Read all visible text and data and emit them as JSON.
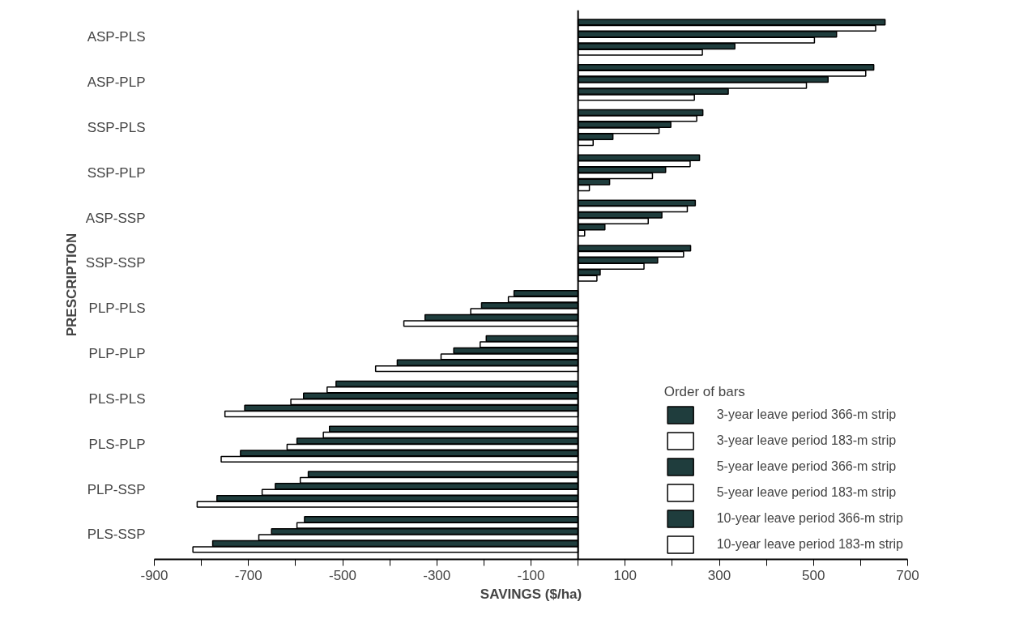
{
  "chart_data": {
    "type": "bar",
    "orientation": "horizontal",
    "xlabel": "SAVINGS ($/ha)",
    "ylabel": "PRESCRIPTION",
    "legend_title": "Order of bars",
    "legend": "bottom right",
    "categories": [
      "ASP-PLS",
      "ASP-PLP",
      "SSP-PLS",
      "SSP-PLP",
      "ASP-SSP",
      "SSP-SSP",
      "PLP-PLS",
      "PLP-PLP",
      "PLS-PLS",
      "PLS-PLP",
      "PLP-SSP",
      "PLS-SSP"
    ],
    "xlim": [
      -900,
      700
    ],
    "xticks": [
      -900,
      {
        "value": -800,
        "label": null
      },
      -700,
      {
        "value": -600,
        "label": null
      },
      -500,
      {
        "value": -400,
        "label": null
      },
      -300,
      {
        "value": -200,
        "label": null
      },
      -100,
      {
        "value": 0,
        "label": null
      },
      100,
      {
        "value": 200,
        "label": null
      },
      300,
      {
        "value": 400,
        "label": null
      },
      500,
      {
        "value": 600,
        "label": null
      },
      700
    ],
    "ref_lines": [
      {
        "axis": "x",
        "value": 0,
        "label": null,
        "color": "#000000"
      }
    ],
    "series": [
      {
        "name": "3-year leave period 366-m strip",
        "color": "#1f3d3d",
        "values": [
          652,
          628,
          265,
          258,
          249,
          239,
          -136,
          -195,
          -514,
          -528,
          -573,
          -581
        ]
      },
      {
        "name": "3-year leave period 183-m strip",
        "color": "#ffffff",
        "values": [
          632,
          611,
          252,
          238,
          232,
          224,
          -148,
          -208,
          -533,
          -541,
          -590,
          -597
        ]
      },
      {
        "name": "5-year leave period 366-m strip",
        "color": "#1f3d3d",
        "values": [
          549,
          531,
          197,
          186,
          178,
          169,
          -205,
          -264,
          -583,
          -597,
          -643,
          -651
        ]
      },
      {
        "name": "5-year leave period 183-m strip",
        "color": "#ffffff",
        "values": [
          502,
          485,
          172,
          158,
          149,
          140,
          -228,
          -291,
          -610,
          -618,
          -671,
          -678
        ]
      },
      {
        "name": "10-year leave period 366-m strip",
        "color": "#1f3d3d",
        "values": [
          333,
          319,
          74,
          67,
          57,
          47,
          -325,
          -384,
          -708,
          -717,
          -767,
          -776
        ]
      },
      {
        "name": "10-year leave period 183-m strip",
        "color": "#ffffff",
        "values": [
          264,
          247,
          32,
          24,
          14,
          40,
          -370,
          -430,
          -750,
          -758,
          -809,
          -818
        ]
      }
    ]
  }
}
